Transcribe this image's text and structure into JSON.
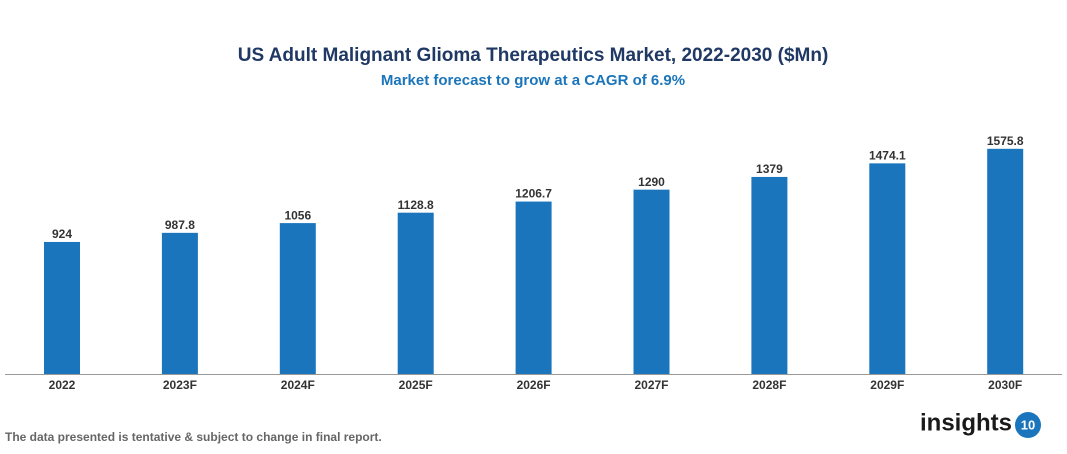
{
  "chart_data": {
    "type": "bar",
    "title": "US Adult Malignant Glioma Therapeutics Market, 2022-2030 ($Mn)",
    "subtitle": "Market forecast to grow at a CAGR of 6.9%",
    "categories": [
      "2022",
      "2023F",
      "2024F",
      "2025F",
      "2026F",
      "2027F",
      "2028F",
      "2029F",
      "2030F"
    ],
    "values": [
      924,
      987.8,
      1056,
      1128.8,
      1206.7,
      1290,
      1379,
      1474.1,
      1575.8
    ],
    "color": "#1a75bc"
  },
  "footer": {
    "note": "The data presented is tentative & subject to change in final report.",
    "logo_text": "insights",
    "logo_number": "10"
  }
}
